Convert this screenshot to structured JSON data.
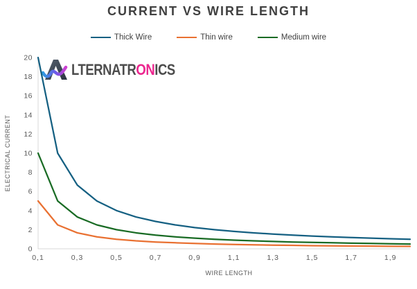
{
  "title": "CURRENT VS WIRE LENGTH",
  "logo": {
    "brand": "ALTERNATRONICS",
    "pre": "LTERNATR",
    "highlight": "ON",
    "post": "ICS",
    "text_color": "#4D4D4D",
    "highlight_color": "#EC268F",
    "mark": "stylized-A-with-wave"
  },
  "colors": {
    "title_text": "#404040",
    "axis_line": "#D9D9D9",
    "tick_text": "#595959",
    "background": "#FFFFFF"
  },
  "chart_data": {
    "type": "line",
    "title": "CURRENT VS WIRE LENGTH",
    "xlabel": "WIRE LENGTH",
    "ylabel": "ELECTRICAL CURRENT",
    "xlim": [
      0.1,
      2.0
    ],
    "ylim": [
      0,
      20
    ],
    "grid": false,
    "legend_position": "top",
    "x": [
      0.1,
      0.2,
      0.3,
      0.4,
      0.5,
      0.6,
      0.7,
      0.8,
      0.9,
      1.0,
      1.1,
      1.2,
      1.3,
      1.4,
      1.5,
      1.6,
      1.7,
      1.8,
      1.9,
      2.0
    ],
    "x_ticks": [
      0.1,
      0.3,
      0.5,
      0.7,
      0.9,
      1.1,
      1.3,
      1.5,
      1.7,
      1.9
    ],
    "x_tick_labels": [
      "0,1",
      "0,3",
      "0,5",
      "0,7",
      "0,9",
      "1,1",
      "1,3",
      "1,5",
      "1,7",
      "1,9"
    ],
    "y_ticks": [
      0,
      2,
      4,
      6,
      8,
      10,
      12,
      14,
      16,
      18,
      20
    ],
    "series": [
      {
        "name": "Thick Wire",
        "color": "#156082",
        "values": [
          20,
          10,
          6.67,
          5,
          4,
          3.33,
          2.86,
          2.5,
          2.22,
          2,
          1.82,
          1.67,
          1.54,
          1.43,
          1.33,
          1.25,
          1.18,
          1.11,
          1.05,
          1
        ]
      },
      {
        "name": "Thin wire",
        "color": "#E97132",
        "values": [
          5,
          2.5,
          1.67,
          1.25,
          1,
          0.83,
          0.71,
          0.63,
          0.56,
          0.5,
          0.45,
          0.42,
          0.38,
          0.36,
          0.33,
          0.31,
          0.29,
          0.28,
          0.26,
          0.25
        ]
      },
      {
        "name": "Medium wire",
        "color": "#196B24",
        "values": [
          10,
          5,
          3.33,
          2.5,
          2,
          1.67,
          1.43,
          1.25,
          1.11,
          1,
          0.91,
          0.83,
          0.77,
          0.71,
          0.67,
          0.63,
          0.59,
          0.56,
          0.53,
          0.5
        ]
      }
    ]
  }
}
